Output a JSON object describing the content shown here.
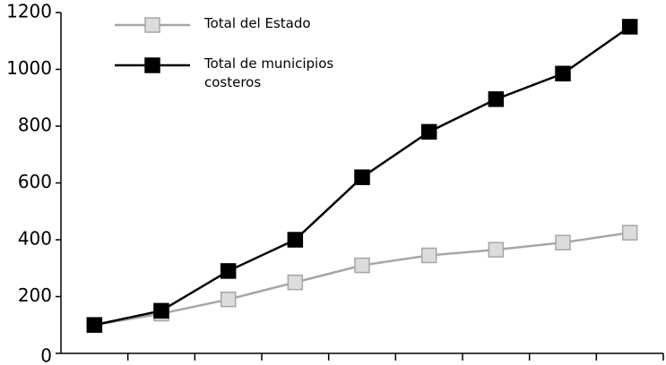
{
  "chart_data": {
    "type": "line",
    "categories": [
      null,
      null,
      null,
      null,
      null,
      null,
      null,
      null,
      null
    ],
    "series": [
      {
        "name": "Total del Estado",
        "color": "#a6a6a6",
        "marker_fill": "#dcdcdc",
        "values": [
          100,
          140,
          190,
          250,
          310,
          345,
          365,
          390,
          425
        ]
      },
      {
        "name": "Total de municipios costeros",
        "color": "#000000",
        "marker_fill": "#000000",
        "values": [
          100,
          150,
          290,
          400,
          620,
          780,
          895,
          985,
          1150
        ]
      }
    ],
    "ylim": [
      0,
      1200
    ],
    "yticks": [
      0,
      200,
      400,
      600,
      800,
      1000,
      1200
    ],
    "grid": false,
    "legend": "top-left"
  }
}
